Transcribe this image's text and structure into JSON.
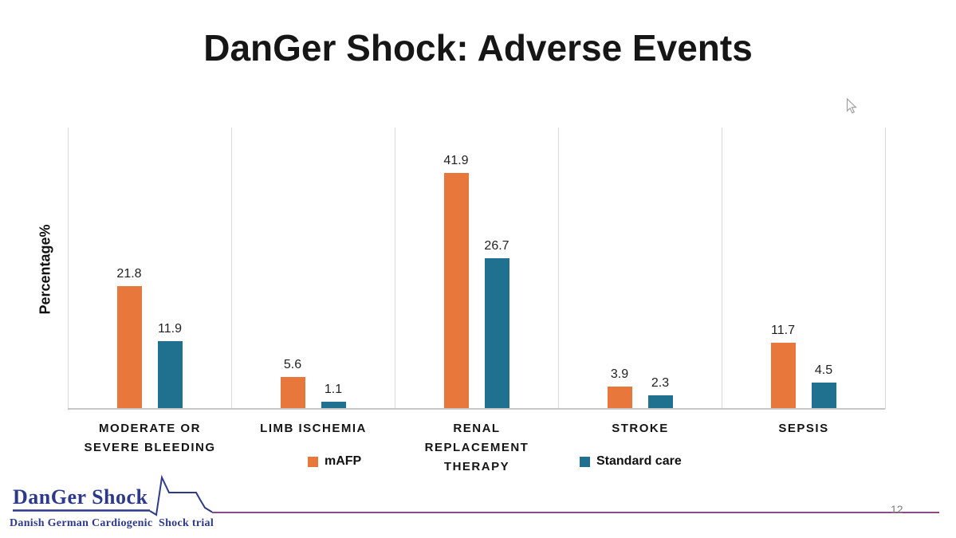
{
  "slide": {
    "title": "DanGer Shock: Adverse Events",
    "page_number": "12",
    "background_color": "#ffffff"
  },
  "chart_data": {
    "type": "bar",
    "title": "",
    "xlabel": "",
    "ylabel": "Percentage%",
    "ylim": [
      0,
      50
    ],
    "grid": "vertical-category-separators",
    "legend_position": "bottom",
    "categories": [
      "MODERATE OR\nSEVERE BLEEDING",
      "LIMB ISCHEMIA",
      "RENAL\nREPLACEMENT\nTHERAPY",
      "STROKE",
      "SEPSIS"
    ],
    "series": [
      {
        "name": "mAFP",
        "color": "#e8773c",
        "values": [
          21.8,
          5.6,
          41.9,
          3.9,
          11.7
        ]
      },
      {
        "name": "Standard care",
        "color": "#20708f",
        "values": [
          11.9,
          1.1,
          26.7,
          2.3,
          4.5
        ]
      }
    ],
    "gridline_color": "#d9d9d9",
    "baseline_color": "#c6c6c6"
  },
  "logo": {
    "name": "DanGer Shock",
    "subtitle": "Danish German Cardiogenic  Shock trial",
    "text_color": "#2d3a8c",
    "ecg_line_color": "#2d3a8c",
    "accent_line_color": "#8a4a8a"
  },
  "cursor": {
    "icon": "arrow-pointer"
  }
}
